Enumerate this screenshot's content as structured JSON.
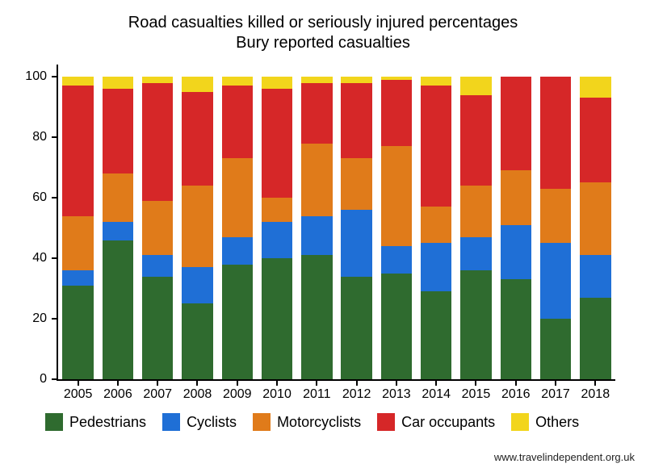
{
  "chart": {
    "type": "stacked-bar",
    "title_line1": "Road casualties killed or seriously injured percentages",
    "title_line2": "Bury reported casualties",
    "title_fontsize": 20,
    "xlabel_fontsize": 16,
    "ylabel_fontsize": 16,
    "legend_fontsize": 18,
    "background_color": "#ffffff",
    "axis_color": "#000000",
    "ylim": [
      0,
      104
    ],
    "yticks": [
      0,
      20,
      40,
      60,
      80,
      100
    ],
    "categories": [
      "2005",
      "2006",
      "2007",
      "2008",
      "2009",
      "2010",
      "2011",
      "2012",
      "2013",
      "2014",
      "2015",
      "2016",
      "2017",
      "2018"
    ],
    "series": [
      {
        "name": "Pedestrians",
        "color": "#2f6b2f"
      },
      {
        "name": "Cyclists",
        "color": "#1f6fd6"
      },
      {
        "name": "Motorcyclists",
        "color": "#e07b1a"
      },
      {
        "name": "Car occupants",
        "color": "#d62728"
      },
      {
        "name": "Others",
        "color": "#f2d51c"
      }
    ],
    "data": [
      [
        31,
        5,
        18,
        43,
        3
      ],
      [
        46,
        6,
        16,
        28,
        4
      ],
      [
        34,
        7,
        18,
        39,
        2
      ],
      [
        25,
        12,
        27,
        31,
        5
      ],
      [
        38,
        9,
        26,
        24,
        3
      ],
      [
        40,
        12,
        8,
        36,
        4
      ],
      [
        41,
        13,
        24,
        20,
        2
      ],
      [
        34,
        22,
        17,
        25,
        2
      ],
      [
        35,
        9,
        33,
        22,
        1
      ],
      [
        29,
        16,
        12,
        40,
        3
      ],
      [
        36,
        11,
        17,
        30,
        6
      ],
      [
        33,
        18,
        18,
        31,
        0
      ],
      [
        20,
        25,
        18,
        37,
        0
      ],
      [
        27,
        14,
        24,
        28,
        7
      ]
    ],
    "bar_width": 0.78,
    "footer": "www.travelindependent.org.uk"
  }
}
